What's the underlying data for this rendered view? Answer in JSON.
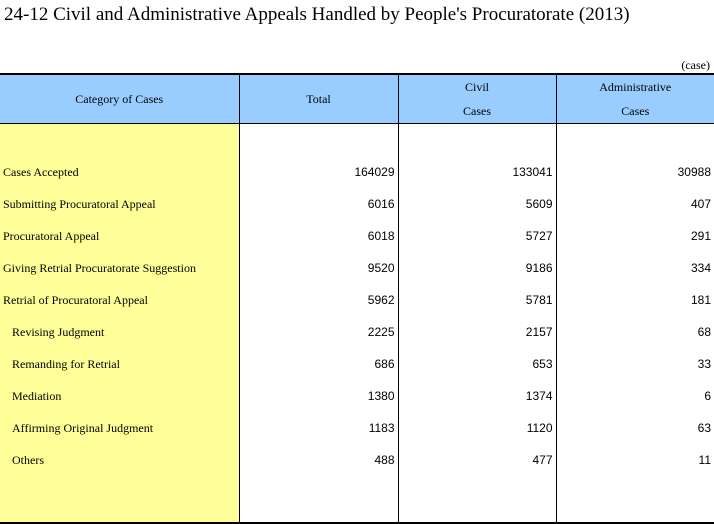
{
  "title": "24-12  Civil and Administrative Appeals Handled by People's Procuratorate (2013)",
  "unit": "(case)",
  "headers": {
    "category": "Category of Cases",
    "total": "Total",
    "civil_line1": "Civil",
    "civil_line2": "Cases",
    "admin_line1": "Administrative",
    "admin_line2": "Cases"
  },
  "rows": [
    {
      "label": "Cases Accepted",
      "total": "164029",
      "civil": "133041",
      "admin": "30988"
    },
    {
      "label": "Submitting Procuratoral Appeal",
      "total": "6016",
      "civil": "5609",
      "admin": "407"
    },
    {
      "label": "Procuratoral Appeal",
      "total": "6018",
      "civil": "5727",
      "admin": "291"
    },
    {
      "label": "Giving Retrial Procuratorate Suggestion",
      "total": "9520",
      "civil": "9186",
      "admin": "334"
    },
    {
      "label": "Retrial of Procuratoral Appeal",
      "total": "5962",
      "civil": "5781",
      "admin": "181"
    },
    {
      "label": "Revising Judgment",
      "total": "2225",
      "civil": "2157",
      "admin": "68"
    },
    {
      "label": "Remanding for Retrial",
      "total": "686",
      "civil": "653",
      "admin": "33"
    },
    {
      "label": "Mediation",
      "total": "1380",
      "civil": "1374",
      "admin": "6"
    },
    {
      "label": "Affirming Original Judgment",
      "total": "1183",
      "civil": "1120",
      "admin": "63"
    },
    {
      "label": "Others",
      "total": "488",
      "civil": "477",
      "admin": "11"
    }
  ]
}
